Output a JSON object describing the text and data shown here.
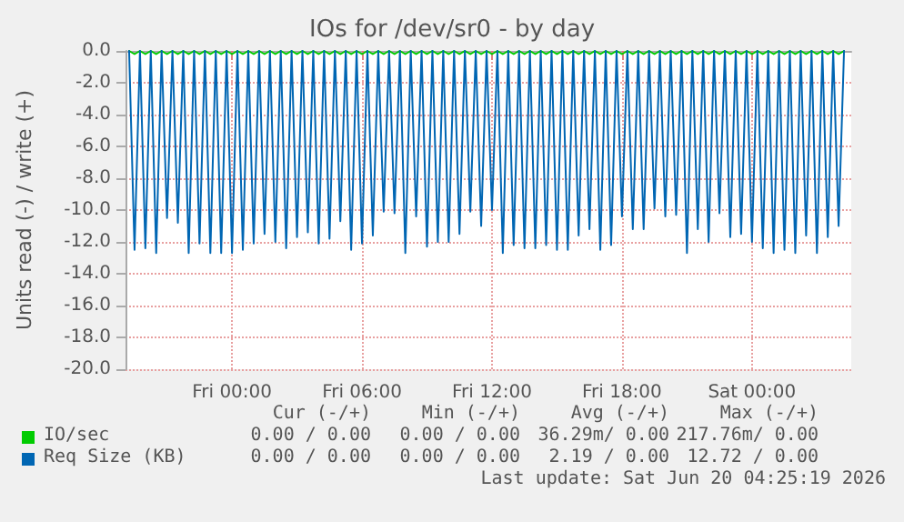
{
  "chart_data": {
    "type": "line",
    "title": "IOs for /dev/sr0 - by day",
    "ylabel": "Units read (-) / write (+)",
    "x": [
      "2026-06-18T19:15",
      "2026-06-18T19:30",
      "2026-06-18T19:45",
      "2026-06-18T20:00",
      "2026-06-18T20:15",
      "2026-06-18T20:30",
      "2026-06-18T20:45",
      "2026-06-18T21:00",
      "2026-06-18T21:15",
      "2026-06-18T21:30",
      "2026-06-18T21:45",
      "2026-06-18T22:00",
      "2026-06-18T22:15",
      "2026-06-18T22:30",
      "2026-06-18T22:45",
      "2026-06-18T23:00",
      "2026-06-18T23:15",
      "2026-06-18T23:30",
      "2026-06-18T23:45",
      "2026-06-19T00:00",
      "2026-06-19T00:15",
      "2026-06-19T00:30",
      "2026-06-19T00:45",
      "2026-06-19T01:00",
      "2026-06-19T01:15",
      "2026-06-19T01:30",
      "2026-06-19T01:45",
      "2026-06-19T02:00",
      "2026-06-19T02:15",
      "2026-06-19T02:30",
      "2026-06-19T02:45",
      "2026-06-19T03:00",
      "2026-06-19T03:15",
      "2026-06-19T03:30",
      "2026-06-19T03:45",
      "2026-06-19T04:00",
      "2026-06-19T04:15",
      "2026-06-19T04:30",
      "2026-06-19T04:45",
      "2026-06-19T05:00",
      "2026-06-19T05:15",
      "2026-06-19T05:30",
      "2026-06-19T05:45",
      "2026-06-19T06:00",
      "2026-06-19T06:15",
      "2026-06-19T06:30",
      "2026-06-19T06:45",
      "2026-06-19T07:00",
      "2026-06-19T07:15",
      "2026-06-19T07:30",
      "2026-06-19T07:45",
      "2026-06-19T08:00",
      "2026-06-19T08:15",
      "2026-06-19T08:30",
      "2026-06-19T08:45",
      "2026-06-19T09:00",
      "2026-06-19T09:15",
      "2026-06-19T09:30",
      "2026-06-19T09:45",
      "2026-06-19T10:00",
      "2026-06-19T10:15",
      "2026-06-19T10:30",
      "2026-06-19T10:45",
      "2026-06-19T11:00",
      "2026-06-19T11:15",
      "2026-06-19T11:30",
      "2026-06-19T11:45",
      "2026-06-19T12:00",
      "2026-06-19T12:15",
      "2026-06-19T12:30",
      "2026-06-19T12:45",
      "2026-06-19T13:00",
      "2026-06-19T13:15",
      "2026-06-19T13:30",
      "2026-06-19T13:45",
      "2026-06-19T14:00",
      "2026-06-19T14:15",
      "2026-06-19T14:30",
      "2026-06-19T14:45",
      "2026-06-19T15:00",
      "2026-06-19T15:15",
      "2026-06-19T15:30",
      "2026-06-19T15:45",
      "2026-06-19T16:00",
      "2026-06-19T16:15",
      "2026-06-19T16:30",
      "2026-06-19T16:45",
      "2026-06-19T17:00",
      "2026-06-19T17:15",
      "2026-06-19T17:30",
      "2026-06-19T17:45",
      "2026-06-19T18:00",
      "2026-06-19T18:15",
      "2026-06-19T18:30",
      "2026-06-19T18:45",
      "2026-06-19T19:00",
      "2026-06-19T19:15",
      "2026-06-19T19:30",
      "2026-06-19T19:45",
      "2026-06-19T20:00",
      "2026-06-19T20:15",
      "2026-06-19T20:30",
      "2026-06-19T20:45",
      "2026-06-19T21:00",
      "2026-06-19T21:15",
      "2026-06-19T21:30",
      "2026-06-19T21:45",
      "2026-06-19T22:00",
      "2026-06-19T22:15",
      "2026-06-19T22:30",
      "2026-06-19T22:45",
      "2026-06-19T23:00",
      "2026-06-19T23:15",
      "2026-06-19T23:30",
      "2026-06-19T23:45",
      "2026-06-20T00:00",
      "2026-06-20T00:15",
      "2026-06-20T00:30",
      "2026-06-20T00:45",
      "2026-06-20T01:00",
      "2026-06-20T01:15",
      "2026-06-20T01:30",
      "2026-06-20T01:45",
      "2026-06-20T02:00",
      "2026-06-20T02:15",
      "2026-06-20T02:30",
      "2026-06-20T02:45",
      "2026-06-20T03:00",
      "2026-06-20T03:15",
      "2026-06-20T03:30",
      "2026-06-20T03:45",
      "2026-06-20T04:00",
      "2026-06-20T04:15"
    ],
    "series": [
      {
        "name": "Req Size (KB)",
        "color": "#0066b3",
        "values": [
          0,
          -12.5,
          0,
          -12.4,
          0,
          -12.7,
          0,
          -10.5,
          0,
          -10.8,
          0,
          -12.7,
          0,
          -12.1,
          0,
          -12.7,
          0,
          -12.7,
          0,
          -12.7,
          0,
          -12.5,
          0,
          -12.1,
          0,
          -11.5,
          0,
          -12.0,
          0,
          -12.4,
          0,
          -11.7,
          0,
          -11.4,
          0,
          -12.1,
          0,
          -11.8,
          0,
          -10.7,
          0,
          -12.5,
          0,
          -12.1,
          0,
          -11.6,
          0,
          -10.1,
          0,
          -10.2,
          0,
          -12.7,
          0,
          -10.4,
          0,
          -12.3,
          0,
          -12.0,
          0,
          -12.0,
          0,
          -11.5,
          0,
          -10.1,
          0,
          -11.0,
          0,
          -10.0,
          0,
          -12.7,
          0,
          -12.2,
          0,
          -12.4,
          0,
          -12.4,
          0,
          -12.2,
          0,
          -12.5,
          0,
          -12.5,
          0,
          -11.6,
          0,
          -11.2,
          0,
          -12.5,
          0,
          -12.2,
          0,
          -10.4,
          0,
          -11.2,
          0,
          -11.2,
          0,
          -9.9,
          0,
          -10.4,
          0,
          -10.3,
          0,
          -12.7,
          0,
          -11.2,
          0,
          -12.0,
          0,
          -10.2,
          0,
          -11.7,
          0,
          -11.5,
          0,
          -12.0,
          0,
          -12.4,
          0,
          -12.7,
          0,
          -12.5,
          0,
          -12.7,
          0,
          -11.6,
          0,
          -12.7,
          0,
          -11.7,
          0,
          -11.0,
          0
        ]
      },
      {
        "name": "IO/sec",
        "color": "#00cc00",
        "values": [
          0,
          -0.2,
          0,
          -0.2,
          0,
          -0.2,
          0,
          -0.2,
          0,
          -0.2,
          0,
          -0.2,
          0,
          -0.2,
          0,
          -0.2,
          0,
          -0.2,
          0,
          -0.2,
          0,
          -0.2,
          0,
          -0.2,
          0,
          -0.2,
          0,
          -0.2,
          0,
          -0.2,
          0,
          -0.2,
          0,
          -0.2,
          0,
          -0.2,
          0,
          -0.2,
          0,
          -0.2,
          0,
          -0.2,
          0,
          -0.2,
          0,
          -0.2,
          0,
          -0.2,
          0,
          -0.2,
          0,
          -0.2,
          0,
          -0.2,
          0,
          -0.2,
          0,
          -0.2,
          0,
          -0.2,
          0,
          -0.2,
          0,
          -0.2,
          0,
          -0.2,
          0,
          -0.2,
          0,
          -0.2,
          0,
          -0.2,
          0,
          -0.2,
          0,
          -0.2,
          0,
          -0.2,
          0,
          -0.2,
          0,
          -0.2,
          0,
          -0.2,
          0,
          -0.2,
          0,
          -0.2,
          0,
          -0.2,
          0,
          -0.2,
          0,
          -0.2,
          0,
          -0.2,
          0,
          -0.2,
          0,
          -0.2,
          0,
          -0.2,
          0,
          -0.2,
          0,
          -0.2,
          0,
          -0.2,
          0,
          -0.2,
          0,
          -0.2,
          0,
          -0.2,
          0,
          -0.2,
          0,
          -0.2,
          0,
          -0.2,
          0,
          -0.2,
          0,
          -0.2,
          0,
          -0.2,
          0,
          -0.2,
          0,
          -0.2,
          0,
          -0.2,
          0
        ]
      }
    ],
    "xlim": [
      "2026-06-18T19:05",
      "2026-06-20T04:35"
    ],
    "xticks": [
      {
        "value": "2026-06-19T00:00",
        "label": "Fri 00:00"
      },
      {
        "value": "2026-06-19T06:00",
        "label": "Fri 06:00"
      },
      {
        "value": "2026-06-19T12:00",
        "label": "Fri 12:00"
      },
      {
        "value": "2026-06-19T18:00",
        "label": "Fri 18:00"
      },
      {
        "value": "2026-06-20T00:00",
        "label": "Sat 00:00"
      }
    ],
    "ylim": [
      -20,
      0
    ],
    "yticks": [
      {
        "value": 0,
        "label": "0.0"
      },
      {
        "value": -2,
        "label": "-2.0"
      },
      {
        "value": -4,
        "label": "-4.0"
      },
      {
        "value": -6,
        "label": "-6.0"
      },
      {
        "value": -8,
        "label": "-8.0"
      },
      {
        "value": -10,
        "label": "-10.0"
      },
      {
        "value": -12,
        "label": "-12.0"
      },
      {
        "value": -14,
        "label": "-14.0"
      },
      {
        "value": -16,
        "label": "-16.0"
      },
      {
        "value": -18,
        "label": "-18.0"
      },
      {
        "value": -20,
        "label": "-20.0"
      }
    ],
    "grid": true,
    "legend": "bottom left",
    "marker": "none",
    "line_style": "solid",
    "annotations": [
      "Cur (-/+)",
      "Min (-/+)",
      "Avg (-/+)",
      "Max (-/+)",
      "0.00 / 0.00",
      "0.00 / 0.00",
      "36.29m/ 0.00",
      "217.76m/ 0.00",
      "0.00 / 0.00",
      "0.00 / 0.00",
      "2.19 / 0.00",
      "12.72 / 0.00",
      "Last update: Sat Jun 20 04:25:19 2026"
    ]
  }
}
